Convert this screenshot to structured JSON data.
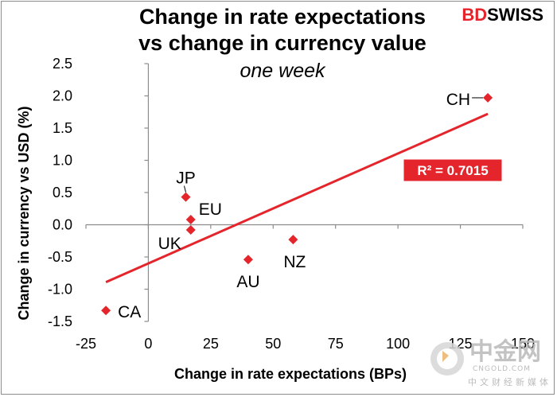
{
  "brand": {
    "part1": "BD",
    "part2": "SWISS",
    "color1": "#e4262c",
    "color2": "#000000"
  },
  "watermark": {
    "main": "中金网",
    "url": "CNGOLD.COM",
    "sub": "中文财经新媒体"
  },
  "chart_data": {
    "type": "scatter",
    "title": [
      "Change in rate expectations",
      "vs change in currency value"
    ],
    "subtitle": "one week",
    "xlabel": "Change in rate expectations (BPs)",
    "ylabel": "Change in currency vs USD (%)",
    "xlim": [
      -25,
      150
    ],
    "ylim": [
      -1.5,
      2.5
    ],
    "xticks": [
      -25,
      0,
      25,
      50,
      75,
      100,
      125,
      150
    ],
    "yticks": [
      -1.5,
      -1.0,
      -0.5,
      0.0,
      0.5,
      1.0,
      1.5,
      2.0,
      2.5
    ],
    "xtick_labels": [
      "-25",
      "0",
      "25",
      "50",
      "75",
      "100",
      "125",
      "150"
    ],
    "ytick_labels": [
      "-1.5",
      "-1.0",
      "-0.5",
      "0.0",
      "0.5",
      "1.0",
      "1.5",
      "2.0",
      "2.5"
    ],
    "marker_color": "#e4262c",
    "points": [
      {
        "label": "CH",
        "x": 136,
        "y": 1.97
      },
      {
        "label": "JP",
        "x": 15,
        "y": 0.43
      },
      {
        "label": "EU",
        "x": 17,
        "y": 0.08
      },
      {
        "label": "UK",
        "x": 17,
        "y": -0.08
      },
      {
        "label": "NZ",
        "x": 58,
        "y": -0.23
      },
      {
        "label": "AU",
        "x": 40,
        "y": -0.54
      },
      {
        "label": "CA",
        "x": -17,
        "y": -1.33
      }
    ],
    "trendline": {
      "color": "#e4262c",
      "x_start": -17,
      "y_start": -0.89,
      "x_end": 136,
      "y_end": 1.72,
      "r2_label": "R² = 0.7015"
    }
  }
}
